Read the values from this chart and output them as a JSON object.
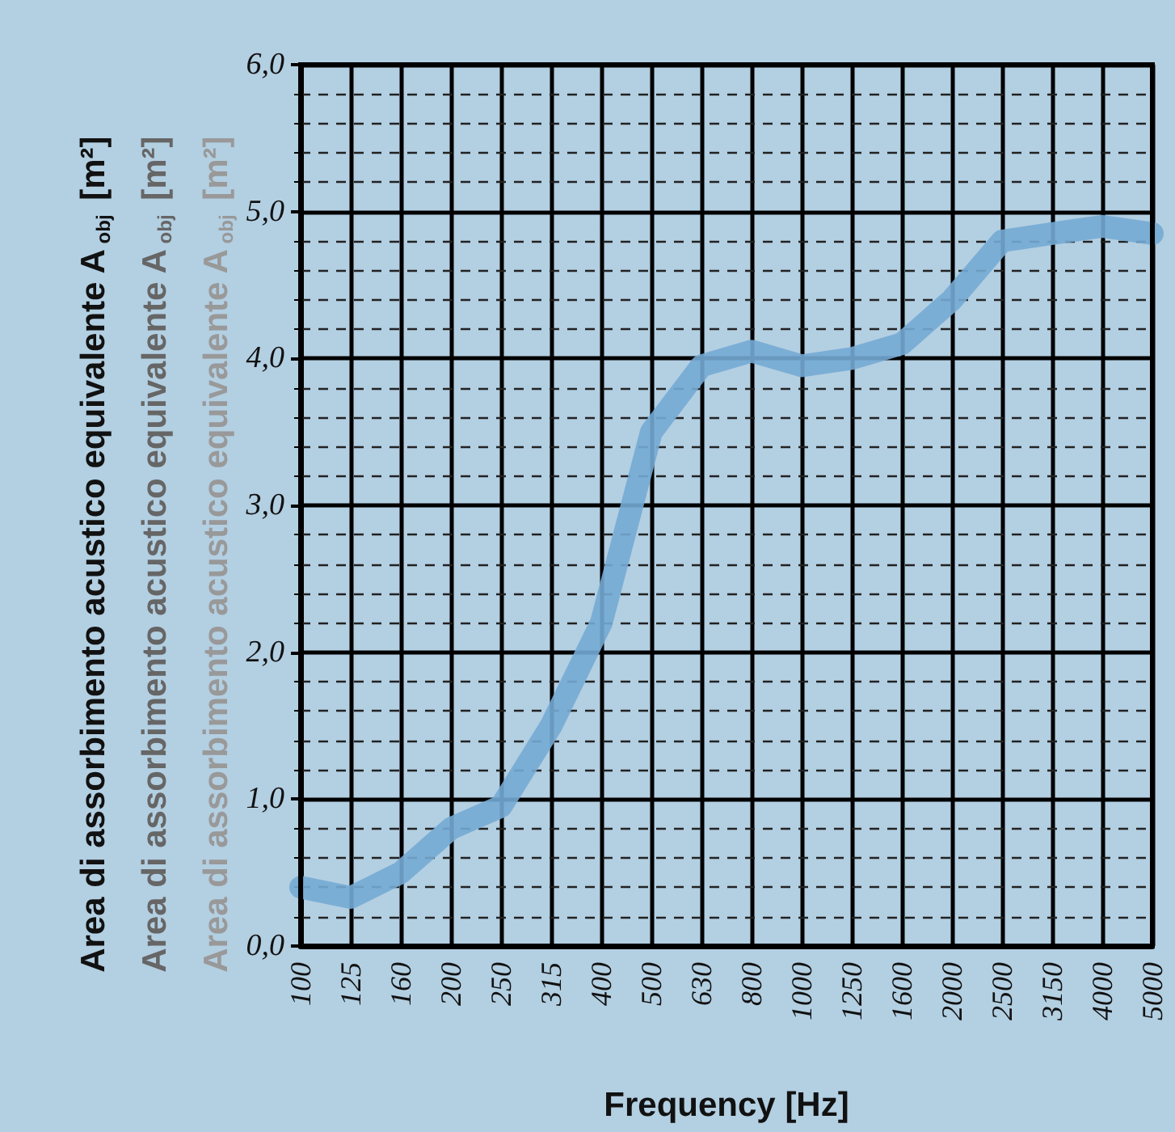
{
  "chart_data": {
    "type": "line",
    "xlabel": "Frequency [Hz]",
    "ylabel": "Area di assorbimento acustico equivalente A$_{obj}$ [m²]",
    "annotations": [
      "Area di assorbimento acustico equivalente A$_{obj}$ [m²]",
      "Area di assorbimento acustico equivalente A$_{obj}$ [m²]"
    ],
    "categories": [
      "100",
      "125",
      "160",
      "200",
      "250",
      "315",
      "400",
      "500",
      "630",
      "800",
      "1000",
      "1250",
      "1600",
      "2000",
      "2500",
      "3150",
      "4000",
      "5000"
    ],
    "series": [
      {
        "color": "#74aad4",
        "values": [
          0.4,
          0.33,
          0.5,
          0.8,
          0.95,
          1.5,
          2.2,
          3.5,
          3.95,
          4.05,
          3.95,
          4.0,
          4.1,
          4.4,
          4.8,
          4.85,
          4.9,
          4.85
        ]
      }
    ],
    "ylim": [
      0,
      6
    ],
    "yticks": [
      {
        "value": 0,
        "label": "0,0"
      },
      {
        "value": 0.2,
        "label": null
      },
      {
        "value": 0.4,
        "label": null
      },
      {
        "value": 0.6,
        "label": null
      },
      {
        "value": 0.8,
        "label": null
      },
      {
        "value": 1,
        "label": "1,0"
      },
      {
        "value": 1.2,
        "label": null
      },
      {
        "value": 1.4,
        "label": null
      },
      {
        "value": 1.6,
        "label": null
      },
      {
        "value": 1.8,
        "label": null
      },
      {
        "value": 2,
        "label": "2,0"
      },
      {
        "value": 2.2,
        "label": null
      },
      {
        "value": 2.4,
        "label": null
      },
      {
        "value": 2.6,
        "label": null
      },
      {
        "value": 2.8,
        "label": null
      },
      {
        "value": 3,
        "label": "3,0"
      },
      {
        "value": 3.2,
        "label": null
      },
      {
        "value": 3.4,
        "label": null
      },
      {
        "value": 3.6,
        "label": null
      },
      {
        "value": 3.8,
        "label": null
      },
      {
        "value": 4,
        "label": "4,0"
      },
      {
        "value": 4.2,
        "label": null
      },
      {
        "value": 4.4,
        "label": null
      },
      {
        "value": 4.6,
        "label": null
      },
      {
        "value": 4.8,
        "label": null
      },
      {
        "value": 5,
        "label": "5,0"
      },
      {
        "value": 5.2,
        "label": null
      },
      {
        "value": 5.4,
        "label": null
      },
      {
        "value": 5.6,
        "label": null
      },
      {
        "value": 5.8,
        "label": null
      },
      {
        "value": 6,
        "label": "6,0"
      }
    ],
    "grid": true,
    "marker": "none",
    "line_style": "solid"
  }
}
